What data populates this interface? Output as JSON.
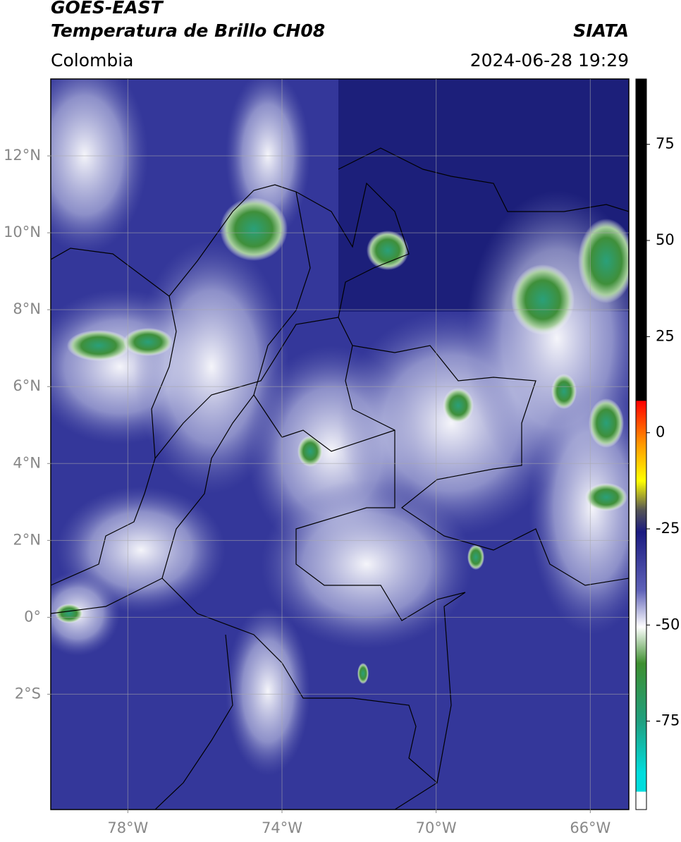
{
  "header": {
    "title": "GOES-EAST",
    "subtitle": "Temperatura de Brillo CH08",
    "source": "SIATA",
    "region": "Colombia",
    "datetime": "2024-06-28 19:29"
  },
  "map": {
    "xlim": [
      -80,
      -65
    ],
    "ylim": [
      -5,
      14
    ],
    "xticks": [
      {
        "value": -78,
        "label": "78°W"
      },
      {
        "value": -74,
        "label": "74°W"
      },
      {
        "value": -70,
        "label": "70°W"
      },
      {
        "value": -66,
        "label": "66°W"
      }
    ],
    "yticks": [
      {
        "value": 12,
        "label": "12°N"
      },
      {
        "value": 10,
        "label": "10°N"
      },
      {
        "value": 8,
        "label": "8°N"
      },
      {
        "value": 6,
        "label": "6°N"
      },
      {
        "value": 4,
        "label": "4°N"
      },
      {
        "value": 2,
        "label": "2°N"
      },
      {
        "value": 0,
        "label": "0°"
      },
      {
        "value": -2,
        "label": "2°S"
      }
    ],
    "grid": true
  },
  "colorbar": {
    "lim": [
      -98,
      92
    ],
    "ticks": [
      75,
      50,
      25,
      0,
      -25,
      -50,
      -75
    ]
  }
}
